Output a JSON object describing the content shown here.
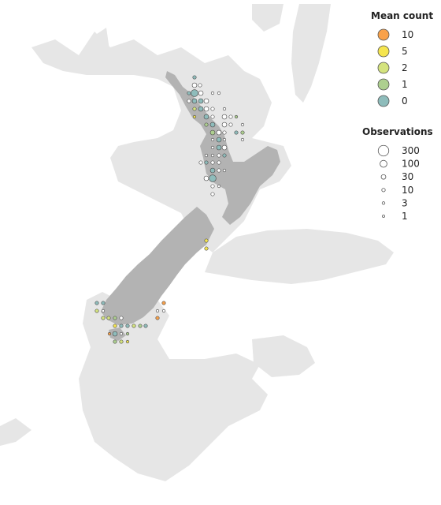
{
  "colors": {
    "ocean_shelf": "#e6e6e6",
    "land": "#b3b3b3",
    "point_outline": "#555555"
  },
  "legend_mean_count": {
    "title": "Mean count",
    "items": [
      {
        "label": "10",
        "color": "#f8a14a"
      },
      {
        "label": "5",
        "color": "#f5e54f"
      },
      {
        "label": "2",
        "color": "#d4e37e"
      },
      {
        "label": "1",
        "color": "#adcf8f"
      },
      {
        "label": "0",
        "color": "#8ebcbb"
      }
    ]
  },
  "legend_observations": {
    "title": "Observations",
    "items": [
      {
        "label": "300",
        "value": 300
      },
      {
        "label": "100",
        "value": 100
      },
      {
        "label": "30",
        "value": 30
      },
      {
        "label": "10",
        "value": 10
      },
      {
        "label": "3",
        "value": 3
      },
      {
        "label": "1",
        "value": 1
      }
    ]
  }
}
